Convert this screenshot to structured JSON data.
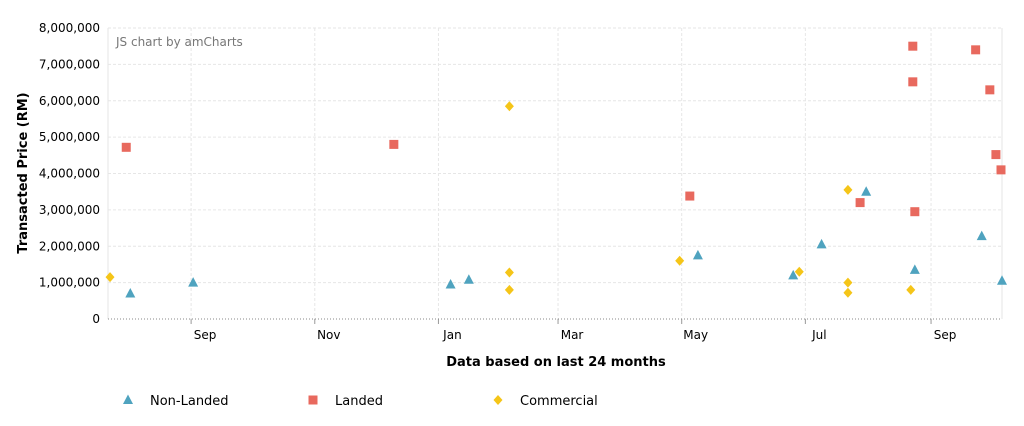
{
  "chart_data": {
    "type": "scatter",
    "credit": "JS chart by amCharts",
    "xlabel": "Data based on last 24 months",
    "ylabel": "Transacted Price (RM)",
    "ylim": [
      0,
      8000000
    ],
    "y_ticks": [
      "0",
      "1,000,000",
      "2,000,000",
      "3,000,000",
      "4,000,000",
      "5,000,000",
      "6,000,000",
      "7,000,000",
      "8,000,000"
    ],
    "y_tick_values": [
      0,
      1000000,
      2000000,
      3000000,
      4000000,
      5000000,
      6000000,
      7000000,
      8000000
    ],
    "xlim": [
      "2016-07-22",
      "2017-10-06"
    ],
    "x_ticks": [
      {
        "label": "Sep",
        "date": "2016-09-01"
      },
      {
        "label": "Nov",
        "date": "2016-11-01"
      },
      {
        "label": "Jan",
        "date": "2017-01-01"
      },
      {
        "label": "Mar",
        "date": "2017-03-01"
      },
      {
        "label": "May",
        "date": "2017-05-01"
      },
      {
        "label": "Jul",
        "date": "2017-07-01"
      },
      {
        "label": "Sep",
        "date": "2017-09-01"
      }
    ],
    "grid": true,
    "legend_position": "bottom",
    "series": [
      {
        "name": "Non-Landed",
        "color": "#4FA3BF",
        "marker": "triangle",
        "points": [
          {
            "x": "2016-08-02",
            "y": 700000
          },
          {
            "x": "2016-09-02",
            "y": 1000000
          },
          {
            "x": "2017-01-07",
            "y": 950000
          },
          {
            "x": "2017-01-16",
            "y": 1080000
          },
          {
            "x": "2017-05-09",
            "y": 1750000
          },
          {
            "x": "2017-06-25",
            "y": 1200000
          },
          {
            "x": "2017-07-09",
            "y": 2050000
          },
          {
            "x": "2017-07-31",
            "y": 3500000
          },
          {
            "x": "2017-08-24",
            "y": 1350000
          },
          {
            "x": "2017-09-26",
            "y": 2280000
          },
          {
            "x": "2017-10-06",
            "y": 1050000
          }
        ]
      },
      {
        "name": "Landed",
        "color": "#E8695E",
        "marker": "square",
        "points": [
          {
            "x": "2016-07-31",
            "y": 4720000
          },
          {
            "x": "2016-12-10",
            "y": 4800000
          },
          {
            "x": "2017-05-05",
            "y": 3380000
          },
          {
            "x": "2017-07-28",
            "y": 3200000
          },
          {
            "x": "2017-08-23",
            "y": 7500000
          },
          {
            "x": "2017-08-23",
            "y": 6520000
          },
          {
            "x": "2017-08-24",
            "y": 2950000
          },
          {
            "x": "2017-09-23",
            "y": 7400000
          },
          {
            "x": "2017-09-30",
            "y": 6300000
          },
          {
            "x": "2017-10-03",
            "y": 4520000
          },
          {
            "x": "2017-10-09",
            "y": 4100000
          }
        ]
      },
      {
        "name": "Commercial",
        "color": "#F5C518",
        "marker": "diamond",
        "points": [
          {
            "x": "2016-07-23",
            "y": 1150000
          },
          {
            "x": "2017-02-05",
            "y": 5850000
          },
          {
            "x": "2017-02-05",
            "y": 1280000
          },
          {
            "x": "2017-02-05",
            "y": 800000
          },
          {
            "x": "2017-04-30",
            "y": 1600000
          },
          {
            "x": "2017-06-28",
            "y": 1300000
          },
          {
            "x": "2017-07-22",
            "y": 3550000
          },
          {
            "x": "2017-07-22",
            "y": 1000000
          },
          {
            "x": "2017-07-22",
            "y": 720000
          },
          {
            "x": "2017-08-22",
            "y": 800000
          }
        ]
      }
    ]
  }
}
